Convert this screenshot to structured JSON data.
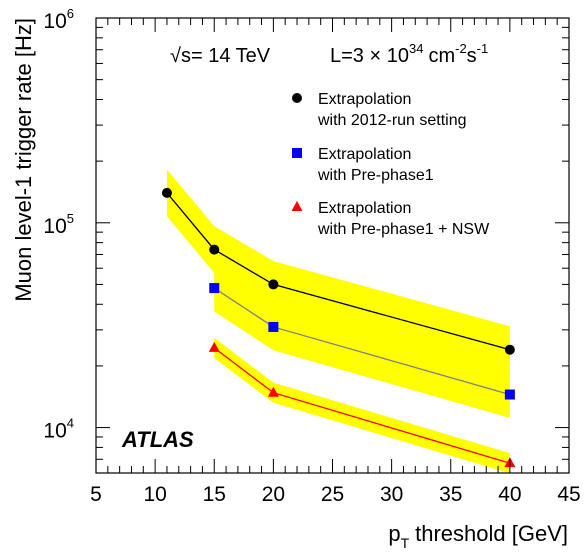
{
  "chart_data": {
    "type": "line",
    "title": "",
    "xlabel": "threshold [GeV]",
    "xlabel_symbol": "p",
    "xlabel_subscript": "T",
    "ylabel": "Muon level-1 trigger rate [Hz]",
    "xlim": [
      5,
      45
    ],
    "ylim": [
      6000,
      1000000
    ],
    "yscale": "log",
    "x_ticks": [
      "5",
      "10",
      "15",
      "20",
      "25",
      "30",
      "35",
      "40",
      "45"
    ],
    "y_ticks": [
      {
        "value": 10000,
        "base": "10",
        "exp": "4"
      },
      {
        "value": 100000,
        "base": "10",
        "exp": "5"
      },
      {
        "value": 1000000,
        "base": "10",
        "exp": "6"
      }
    ],
    "conditions": {
      "sqrt_symbol": "√",
      "energy": "s= 14 TeV",
      "lumi_prefix": "L=3 × 10",
      "lumi_exp": "34",
      "lumi_unit": "cm",
      "lumi_unit_exp": "-2",
      "lumi_unit2": "s",
      "lumi_unit2_exp": "-1"
    },
    "watermark": "ATLAS",
    "legend_position": "top-right",
    "series": [
      {
        "name": "Extrapolation with 2012-run setting",
        "legend_lines": [
          "Extrapolation",
          "with 2012-run setting"
        ],
        "marker": "circle",
        "marker_color": "#000000",
        "line_color": "#000000",
        "band_color": "#ffff00",
        "band_factor": 1.3,
        "x": [
          11,
          15,
          20,
          40
        ],
        "y": [
          140000,
          74000,
          50000,
          24000
        ]
      },
      {
        "name": "Extrapolation with Pre-phase1",
        "legend_lines": [
          "Extrapolation",
          "with Pre-phase1"
        ],
        "marker": "square",
        "marker_color": "#0000ff",
        "line_color": "#808080",
        "band_color": "#ffff00",
        "band_factor": 1.3,
        "x": [
          15,
          20,
          40
        ],
        "y": [
          48000,
          31000,
          14500
        ]
      },
      {
        "name": "Extrapolation with Pre-phase1 + NSW",
        "legend_lines": [
          "Extrapolation",
          "with Pre-phase1 + NSW"
        ],
        "marker": "triangle",
        "marker_color": "#ff0000",
        "line_color": "#ff0000",
        "band_color": "#ffff00",
        "band_factor": 1.12,
        "x": [
          15,
          20,
          40
        ],
        "y": [
          24500,
          14800,
          6700
        ]
      }
    ]
  }
}
